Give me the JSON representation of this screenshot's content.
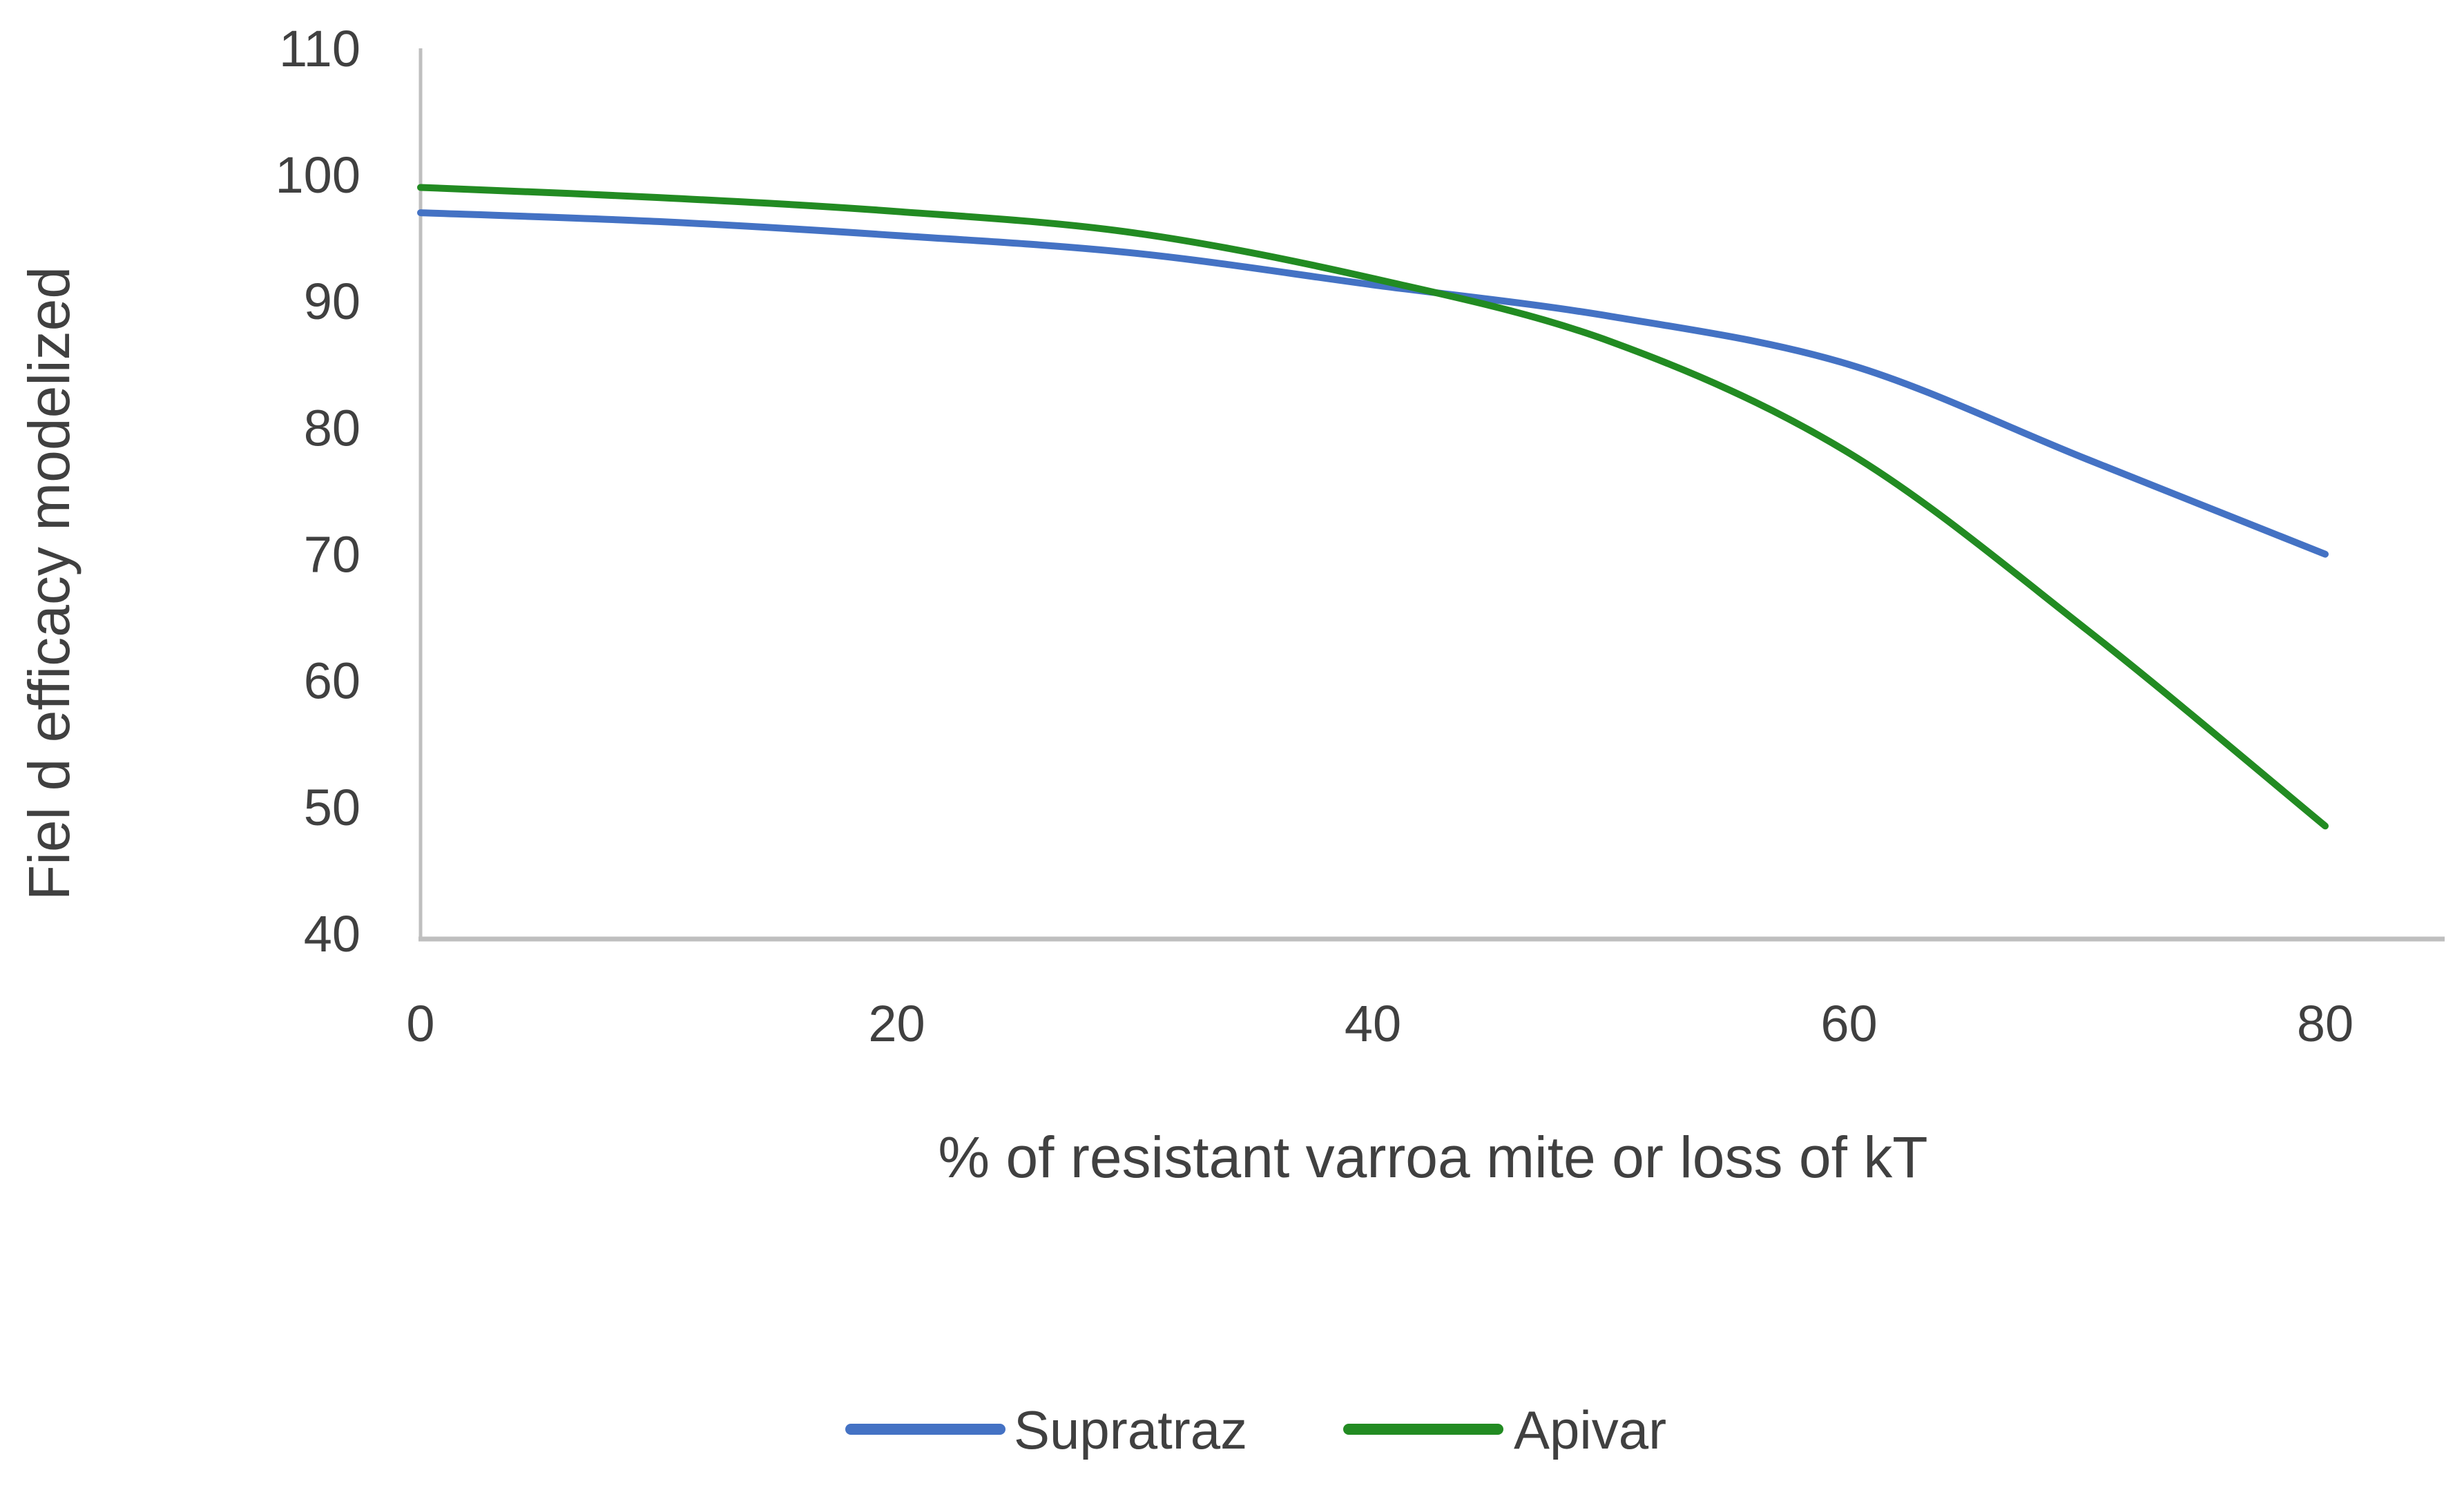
{
  "chart_data": {
    "type": "line",
    "title": "",
    "xlabel": "% of resistant varroa mite or loss of kT",
    "ylabel": "Fiel d efficacy modelized",
    "xlim": [
      0,
      80
    ],
    "ylim": [
      40,
      110
    ],
    "x_ticks": [
      0,
      20,
      40,
      60,
      80
    ],
    "y_ticks": [
      110,
      100,
      90,
      80,
      70,
      60,
      50,
      40
    ],
    "grid": false,
    "legend_position": "bottom-center",
    "crossing_point": {
      "x": 41,
      "y": 91
    },
    "series": [
      {
        "name": "Supratraz",
        "color": "#4472C4",
        "x": [
          0,
          10,
          20,
          30,
          40,
          50,
          60,
          70,
          80
        ],
        "y": [
          97,
          96.3,
          95.2,
          93.8,
          91.3,
          88.8,
          85,
          77.5,
          70
        ]
      },
      {
        "name": "Apivar",
        "color": "#228B22",
        "x": [
          0,
          10,
          20,
          30,
          40,
          50,
          60,
          70,
          80
        ],
        "y": [
          99,
          98.2,
          97.1,
          95.4,
          91.8,
          86.8,
          78,
          64,
          48.5
        ]
      }
    ],
    "colors": {
      "axis_line": "#BFBFBF",
      "text": "#404040",
      "background": "#FFFFFF"
    }
  }
}
